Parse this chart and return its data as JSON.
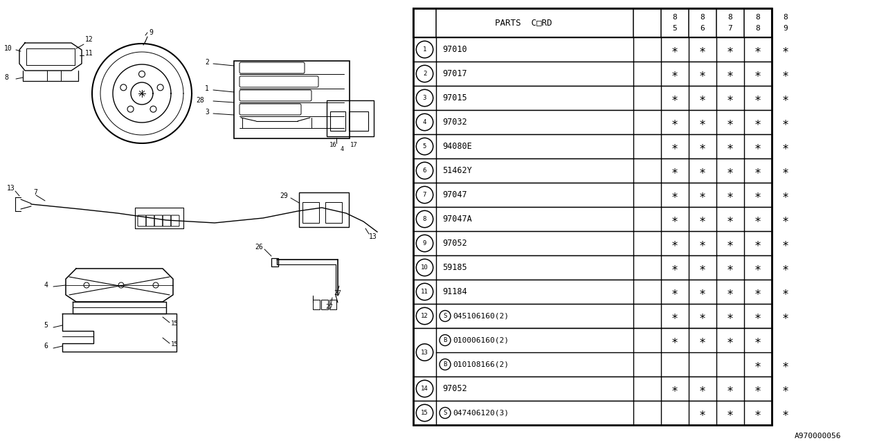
{
  "bg_color": "#ffffff",
  "diagram_note": "A970000056",
  "table": {
    "year_cols": [
      [
        "8",
        "5"
      ],
      [
        "8",
        "6"
      ],
      [
        "8",
        "7"
      ],
      [
        "8",
        "8"
      ],
      [
        "8",
        "9"
      ]
    ],
    "rows": [
      {
        "num": "1",
        "prefix": "",
        "code": "97010",
        "marks": [
          true,
          true,
          true,
          true,
          true
        ],
        "merged_num": false
      },
      {
        "num": "2",
        "prefix": "",
        "code": "97017",
        "marks": [
          true,
          true,
          true,
          true,
          true
        ],
        "merged_num": false
      },
      {
        "num": "3",
        "prefix": "",
        "code": "97015",
        "marks": [
          true,
          true,
          true,
          true,
          true
        ],
        "merged_num": false
      },
      {
        "num": "4",
        "prefix": "",
        "code": "97032",
        "marks": [
          true,
          true,
          true,
          true,
          true
        ],
        "merged_num": false
      },
      {
        "num": "5",
        "prefix": "",
        "code": "94080E",
        "marks": [
          true,
          true,
          true,
          true,
          true
        ],
        "merged_num": false
      },
      {
        "num": "6",
        "prefix": "",
        "code": "51462Y",
        "marks": [
          true,
          true,
          true,
          true,
          true
        ],
        "merged_num": false
      },
      {
        "num": "7",
        "prefix": "",
        "code": "97047",
        "marks": [
          true,
          true,
          true,
          true,
          true
        ],
        "merged_num": false
      },
      {
        "num": "8",
        "prefix": "",
        "code": "97047A",
        "marks": [
          true,
          true,
          true,
          true,
          true
        ],
        "merged_num": false
      },
      {
        "num": "9",
        "prefix": "",
        "code": "97052",
        "marks": [
          true,
          true,
          true,
          true,
          true
        ],
        "merged_num": false
      },
      {
        "num": "10",
        "prefix": "",
        "code": "59185",
        "marks": [
          true,
          true,
          true,
          true,
          true
        ],
        "merged_num": false
      },
      {
        "num": "11",
        "prefix": "",
        "code": "91184",
        "marks": [
          true,
          true,
          true,
          true,
          true
        ],
        "merged_num": false
      },
      {
        "num": "12",
        "prefix": "S",
        "code": "045106160(2)",
        "marks": [
          true,
          true,
          true,
          true,
          true
        ],
        "merged_num": false
      },
      {
        "num": "13",
        "prefix": "B",
        "code": "010006160(2)",
        "marks": [
          true,
          true,
          true,
          true,
          false
        ],
        "merged_num": true,
        "sub": true
      },
      {
        "num": "13",
        "prefix": "B",
        "code": "010108166(2)",
        "marks": [
          false,
          false,
          false,
          true,
          true
        ],
        "merged_num": true,
        "sub": false
      },
      {
        "num": "14",
        "prefix": "",
        "code": "97052",
        "marks": [
          true,
          true,
          true,
          true,
          true
        ],
        "merged_num": false
      },
      {
        "num": "15",
        "prefix": "S",
        "code": "047406120(3)",
        "marks": [
          false,
          true,
          true,
          true,
          true
        ],
        "merged_num": false
      }
    ]
  }
}
